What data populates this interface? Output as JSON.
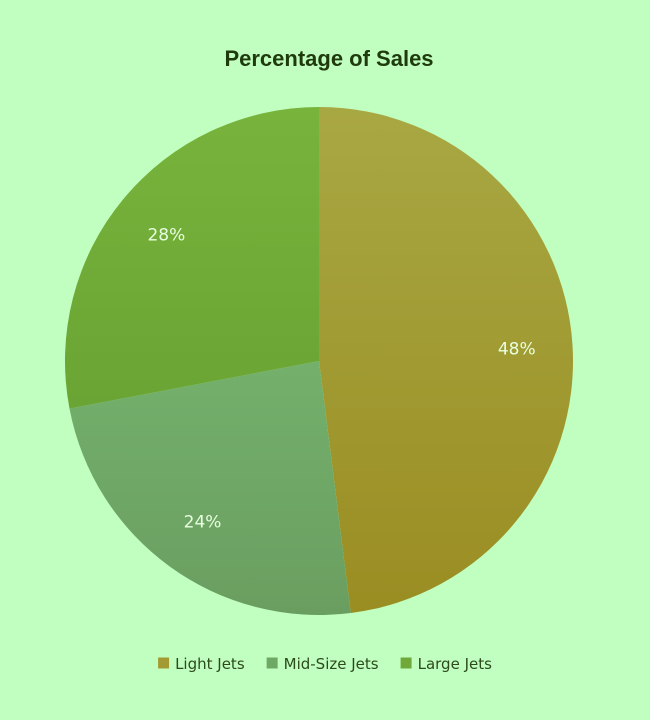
{
  "chart_data": {
    "type": "pie",
    "title": "Percentage of Sales",
    "categories": [
      "Light Jets",
      "Mid-Size Jets",
      "Large Jets"
    ],
    "values": [
      48,
      24,
      28
    ],
    "data_labels": [
      "48%",
      "24%",
      "28%"
    ],
    "colors": [
      "#a39a33",
      "#6fa865",
      "#70a83a"
    ],
    "legend_position": "bottom",
    "start_angle": "12 o'clock, clockwise"
  }
}
